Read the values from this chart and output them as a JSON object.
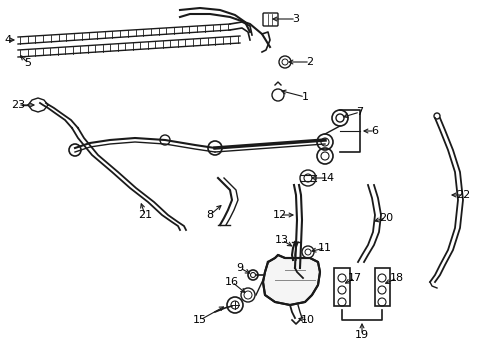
{
  "bg_color": "#ffffff",
  "line_color": "#1a1a1a",
  "label_color": "#000000",
  "figsize": [
    4.89,
    3.6
  ],
  "dpi": 100,
  "xlim": [
    0,
    489
  ],
  "ylim": [
    360,
    0
  ]
}
